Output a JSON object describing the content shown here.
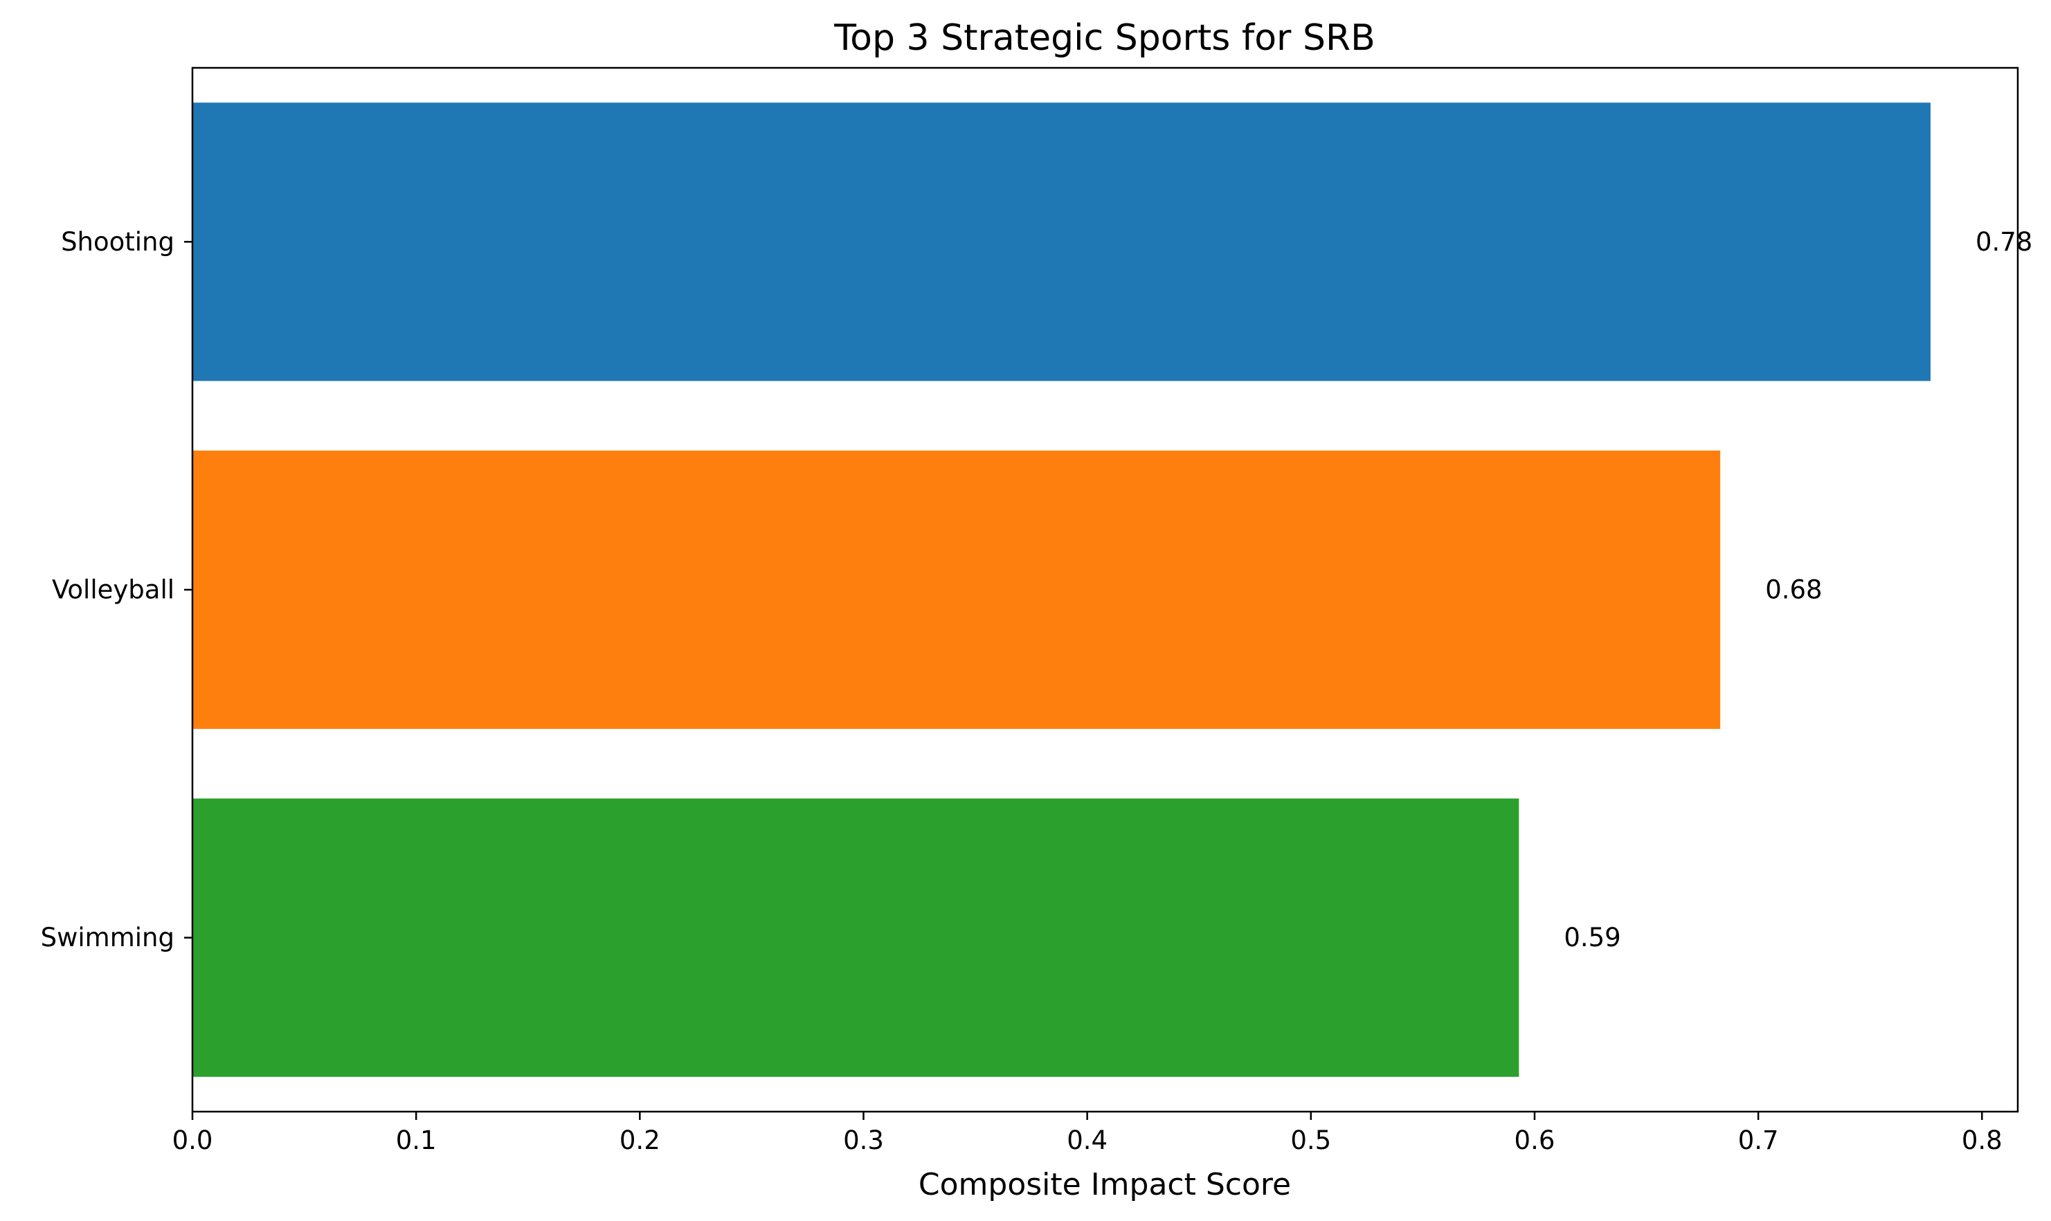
{
  "chart_data": {
    "type": "bar",
    "orientation": "horizontal",
    "title": "Top 3 Strategic Sports for SRB",
    "xlabel": "Composite Impact Score",
    "ylabel": "",
    "categories": [
      "Shooting",
      "Volleyball",
      "Swimming"
    ],
    "values": [
      0.777,
      0.683,
      0.593
    ],
    "data_labels": [
      "0.78",
      "0.68",
      "0.59"
    ],
    "colors": [
      "#1f77b4",
      "#ff7f0e",
      "#2ca02c"
    ],
    "xlim": [
      0,
      0.816
    ],
    "xticks": [
      0.0,
      0.1,
      0.2,
      0.3,
      0.4,
      0.5,
      0.6,
      0.7,
      0.8
    ],
    "xtick_labels": [
      "0.0",
      "0.1",
      "0.2",
      "0.3",
      "0.4",
      "0.5",
      "0.6",
      "0.7",
      "0.8"
    ],
    "grid": false,
    "legend": "none"
  }
}
